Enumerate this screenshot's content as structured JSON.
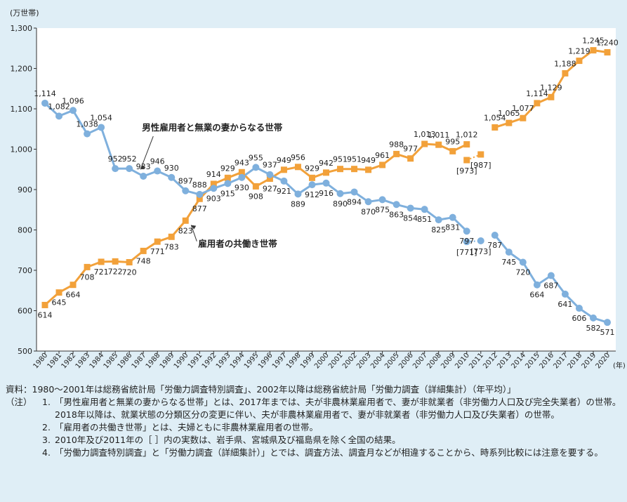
{
  "chart_data": {
    "type": "line",
    "unit_label": "(万世帯)",
    "x_unit": "(年)",
    "ylim": [
      500,
      1300
    ],
    "yticks": [
      "500",
      "600",
      "700",
      "800",
      "900",
      "1,000",
      "1,100",
      "1,200",
      "1,300"
    ],
    "years": [
      "1980",
      "1981",
      "1982",
      "1983",
      "1984",
      "1985",
      "1986",
      "1987",
      "1988",
      "1989",
      "1990",
      "1991",
      "1992",
      "1993",
      "1994",
      "1995",
      "1996",
      "1997",
      "1998",
      "1999",
      "2000",
      "2001",
      "2002",
      "2003",
      "2004",
      "2005",
      "2006",
      "2007",
      "2008",
      "2009",
      "2010",
      "2011",
      "2012",
      "2013",
      "2014",
      "2015",
      "2016",
      "2017",
      "2018",
      "2019",
      "2020"
    ],
    "series": [
      {
        "name": "男性雇用者と無業の妻からなる世帯",
        "color": "#f2a13a",
        "marker": "square",
        "points": [
          {
            "x": "1980",
            "y": 614,
            "label": "614"
          },
          {
            "x": "1981",
            "y": 645,
            "label": "645"
          },
          {
            "x": "1982",
            "y": 664,
            "label": "664"
          },
          {
            "x": "1983",
            "y": 708,
            "label": "708"
          },
          {
            "x": "1984",
            "y": 721,
            "label": "721"
          },
          {
            "x": "1985",
            "y": 722,
            "label": "722"
          },
          {
            "x": "1986",
            "y": 720,
            "label": "720"
          },
          {
            "x": "1987",
            "y": 748,
            "label": "748"
          },
          {
            "x": "1988",
            "y": 771,
            "label": "771"
          },
          {
            "x": "1989",
            "y": 783,
            "label": "783"
          },
          {
            "x": "1990",
            "y": 823,
            "label": "823"
          },
          {
            "x": "1991",
            "y": 877,
            "label": "877"
          },
          {
            "x": "1992",
            "y": 914,
            "label": "914"
          },
          {
            "x": "1993",
            "y": 929,
            "label": "929"
          },
          {
            "x": "1994",
            "y": 943,
            "label": "943"
          },
          {
            "x": "1995",
            "y": 908,
            "label": "908"
          },
          {
            "x": "1996",
            "y": 927,
            "label": "927"
          },
          {
            "x": "1997",
            "y": 949,
            "label": "949"
          },
          {
            "x": "1998",
            "y": 956,
            "label": "956"
          },
          {
            "x": "1999",
            "y": 929,
            "label": "929"
          },
          {
            "x": "2000",
            "y": 942,
            "label": "942"
          },
          {
            "x": "2001",
            "y": 951,
            "label": "951"
          },
          {
            "x": "2002",
            "y": 951,
            "label": "951"
          },
          {
            "x": "2003",
            "y": 949,
            "label": "949"
          },
          {
            "x": "2004",
            "y": 961,
            "label": "961"
          },
          {
            "x": "2005",
            "y": 988,
            "label": "988"
          },
          {
            "x": "2006",
            "y": 977,
            "label": "977"
          },
          {
            "x": "2007",
            "y": 1013,
            "label": "1,013"
          },
          {
            "x": "2008",
            "y": 1011,
            "label": "1,011"
          },
          {
            "x": "2009",
            "y": 995,
            "label": "995"
          },
          {
            "x": "2010",
            "y": 1012,
            "label": "1,012"
          },
          {
            "x": "2012",
            "y": 1054,
            "label": "1,054"
          },
          {
            "x": "2013",
            "y": 1065,
            "label": "1,065"
          },
          {
            "x": "2014",
            "y": 1077,
            "label": "1,077"
          },
          {
            "x": "2015",
            "y": 1114,
            "label": "1,114"
          },
          {
            "x": "2016",
            "y": 1129,
            "label": "1,129"
          },
          {
            "x": "2017",
            "y": 1188,
            "label": "1,188"
          },
          {
            "x": "2018",
            "y": 1219,
            "label": "1,219"
          },
          {
            "x": "2019",
            "y": 1245,
            "label": "1,245"
          },
          {
            "x": "2020",
            "y": 1240,
            "label": "1,240"
          }
        ],
        "excl_points": [
          {
            "x": "2010",
            "y": 973,
            "label": "[973]"
          },
          {
            "x": "2011",
            "y": 987,
            "label": "[987]"
          }
        ]
      },
      {
        "name": "雇用者の共働き世帯",
        "color": "#7fb0dd",
        "marker": "circle",
        "points": [
          {
            "x": "1980",
            "y": 1114,
            "label": "1,114"
          },
          {
            "x": "1981",
            "y": 1082,
            "label": "1,082"
          },
          {
            "x": "1982",
            "y": 1096,
            "label": "1,096"
          },
          {
            "x": "1983",
            "y": 1038,
            "label": "1,038"
          },
          {
            "x": "1984",
            "y": 1054,
            "label": "1,054"
          },
          {
            "x": "1985",
            "y": 952,
            "label": "952"
          },
          {
            "x": "1986",
            "y": 952,
            "label": "952"
          },
          {
            "x": "1987",
            "y": 933,
            "label": "933"
          },
          {
            "x": "1988",
            "y": 946,
            "label": "946"
          },
          {
            "x": "1989",
            "y": 930,
            "label": "930"
          },
          {
            "x": "1990",
            "y": 897,
            "label": "897"
          },
          {
            "x": "1991",
            "y": 888,
            "label": "888"
          },
          {
            "x": "1992",
            "y": 903,
            "label": "903"
          },
          {
            "x": "1993",
            "y": 915,
            "label": "915"
          },
          {
            "x": "1994",
            "y": 930,
            "label": "930"
          },
          {
            "x": "1995",
            "y": 955,
            "label": "955"
          },
          {
            "x": "1996",
            "y": 937,
            "label": "937"
          },
          {
            "x": "1997",
            "y": 921,
            "label": "921"
          },
          {
            "x": "1998",
            "y": 889,
            "label": "889"
          },
          {
            "x": "1999",
            "y": 912,
            "label": "912"
          },
          {
            "x": "2000",
            "y": 916,
            "label": "916"
          },
          {
            "x": "2001",
            "y": 890,
            "label": "890"
          },
          {
            "x": "2002",
            "y": 894,
            "label": "894"
          },
          {
            "x": "2003",
            "y": 870,
            "label": "870"
          },
          {
            "x": "2004",
            "y": 875,
            "label": "875"
          },
          {
            "x": "2005",
            "y": 863,
            "label": "863"
          },
          {
            "x": "2006",
            "y": 854,
            "label": "854"
          },
          {
            "x": "2007",
            "y": 851,
            "label": "851"
          },
          {
            "x": "2008",
            "y": 825,
            "label": "825"
          },
          {
            "x": "2009",
            "y": 831,
            "label": "831"
          },
          {
            "x": "2010",
            "y": 797,
            "label": "797"
          },
          {
            "x": "2012",
            "y": 787,
            "label": "787"
          },
          {
            "x": "2013",
            "y": 745,
            "label": "745"
          },
          {
            "x": "2014",
            "y": 720,
            "label": "720"
          },
          {
            "x": "2015",
            "y": 664,
            "label": "664"
          },
          {
            "x": "2016",
            "y": 687,
            "label": "687"
          },
          {
            "x": "2017",
            "y": 641,
            "label": "641"
          },
          {
            "x": "2018",
            "y": 606,
            "label": "606"
          },
          {
            "x": "2019",
            "y": 582,
            "label": "582"
          },
          {
            "x": "2020",
            "y": 571,
            "label": "571"
          }
        ],
        "excl_points": [
          {
            "x": "2010",
            "y": 771,
            "label": "[771]"
          },
          {
            "x": "2011",
            "y": 773,
            "label": "[773]"
          }
        ]
      }
    ],
    "annotations": [
      {
        "text": "男性雇用者と無業の妻からなる世帯"
      },
      {
        "text": "雇用者の共働き世帯"
      }
    ],
    "grid": false
  },
  "notes": {
    "source": "資料：1980～2001年は総務省統計局「労働力調査特別調査」、2002年以降は総務省統計局「労働力調査（詳細集計）（年平均）」",
    "label": "（注）",
    "items": [
      {
        "num": "1.",
        "text": "「男性雇用者と無業の妻からなる世帯」とは、2017年までは、夫が非農林業雇用者で、妻が非就業者（非労働力人口及び完全失業者）の世帯。2018年以降は、就業状態の分類区分の変更に伴い、夫が非農林業雇用者で、妻が非就業者（非労働力人口及び失業者）の世帯。"
      },
      {
        "num": "2.",
        "text": "「雇用者の共働き世帯」とは、夫婦ともに非農林業雇用者の世帯。"
      },
      {
        "num": "3.",
        "text": "2010年及び2011年の［ ］内の実数は、岩手県、宮城県及び福島県を除く全国の結果。"
      },
      {
        "num": "4.",
        "text": "「労働力調査特別調査」と「労働力調査（詳細集計）」とでは、調査方法、調査月などが相違することから、時系列比較には注意を要する。"
      }
    ]
  }
}
